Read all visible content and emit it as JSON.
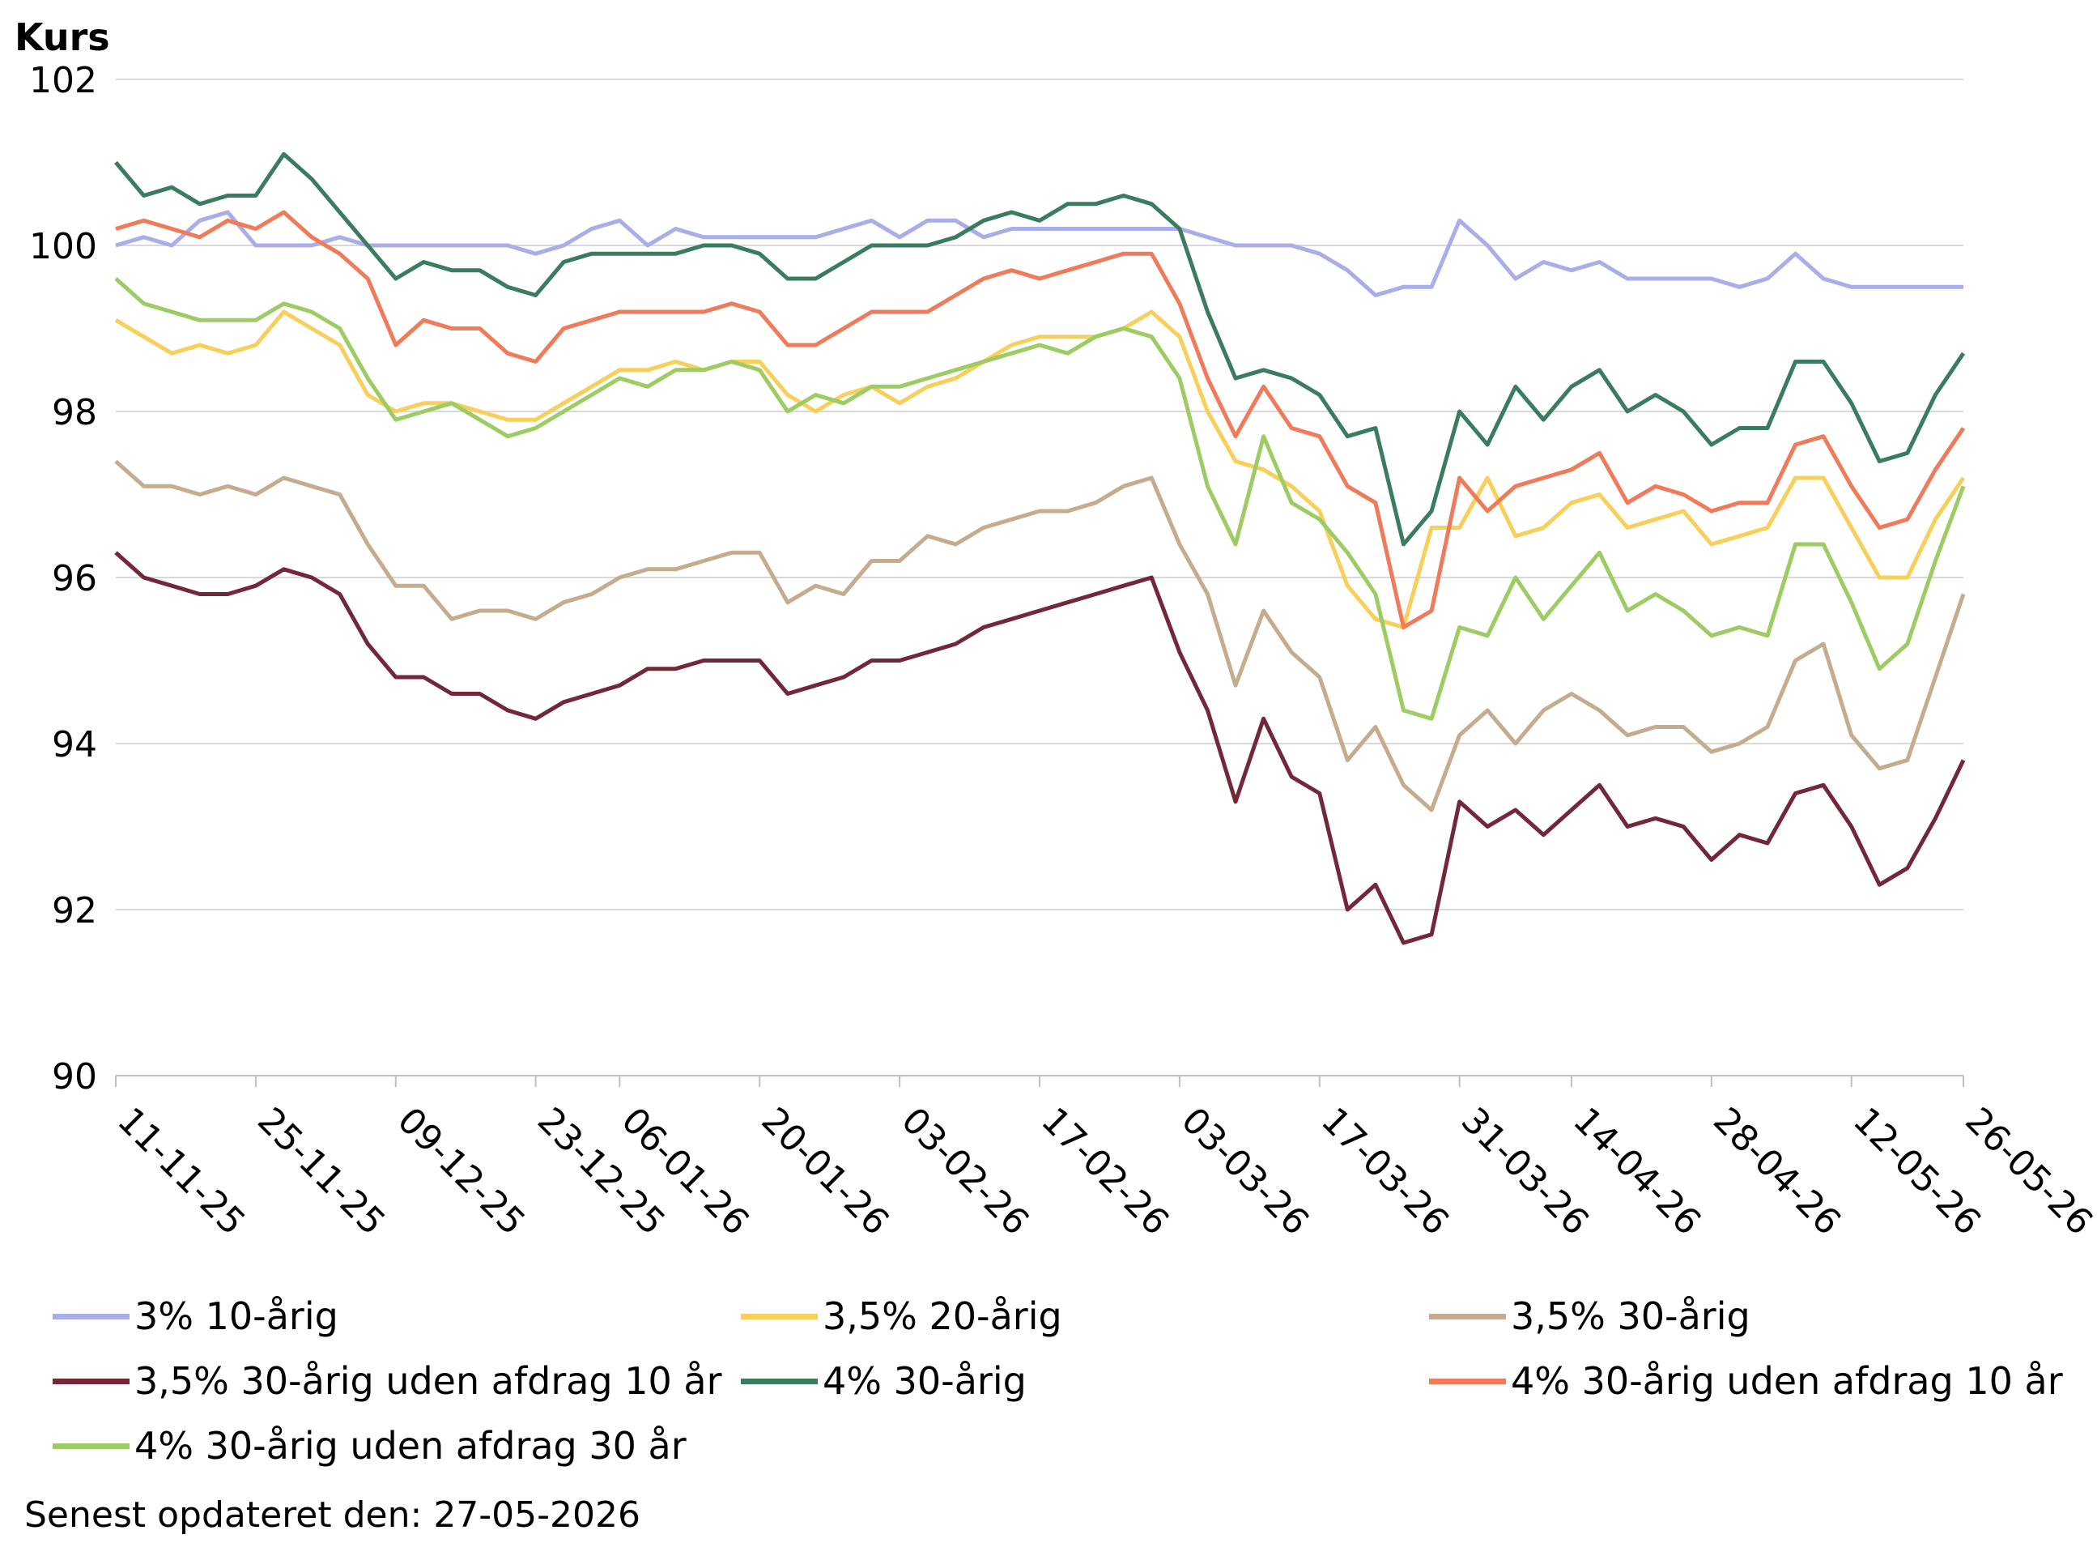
{
  "chart_data": {
    "type": "line",
    "ylabel": "Kurs",
    "ylim": [
      90,
      102
    ],
    "yticks": [
      90,
      92,
      94,
      96,
      98,
      100,
      102
    ],
    "grid": true,
    "legend_position": "bottom",
    "x": [
      "11-11-25",
      "13-11-25",
      "17-11-25",
      "19-11-25",
      "21-11-25",
      "25-11-25",
      "27-11-25",
      "01-12-25",
      "03-12-25",
      "05-12-25",
      "09-12-25",
      "11-12-25",
      "15-12-25",
      "17-12-25",
      "19-12-25",
      "23-12-25",
      "29-12-25",
      "02-01-26",
      "06-01-26",
      "08-01-26",
      "12-01-26",
      "14-01-26",
      "16-01-26",
      "20-01-26",
      "22-01-26",
      "26-01-26",
      "28-01-26",
      "30-01-26",
      "03-02-26",
      "05-02-26",
      "09-02-26",
      "11-02-26",
      "13-02-26",
      "17-02-26",
      "19-02-26",
      "23-02-26",
      "25-02-26",
      "27-02-26",
      "03-03-26",
      "05-03-26",
      "09-03-26",
      "11-03-26",
      "13-03-26",
      "17-03-26",
      "19-03-26",
      "23-03-26",
      "25-03-26",
      "27-03-26",
      "31-03-26",
      "06-04-26",
      "08-04-26",
      "10-04-26",
      "14-04-26",
      "16-04-26",
      "20-04-26",
      "22-04-26",
      "24-04-26",
      "28-04-26",
      "30-04-26",
      "04-05-26",
      "06-05-26",
      "08-05-26",
      "12-05-26",
      "18-05-26",
      "20-05-26",
      "22-05-26",
      "26-05-26"
    ],
    "xticks": [
      "11-11-25",
      "25-11-25",
      "09-12-25",
      "23-12-25",
      "06-01-26",
      "20-01-26",
      "03-02-26",
      "17-02-26",
      "03-03-26",
      "17-03-26",
      "31-03-26",
      "14-04-26",
      "28-04-26",
      "12-05-26",
      "26-05-26"
    ],
    "series": [
      {
        "name": "3% 10-årig",
        "color": "#a9aee8",
        "values": [
          100.0,
          100.1,
          100.0,
          100.3,
          100.4,
          100.0,
          100.0,
          100.0,
          100.1,
          100.0,
          100.0,
          100.0,
          100.0,
          100.0,
          100.0,
          99.9,
          100.0,
          100.2,
          100.3,
          100.0,
          100.2,
          100.1,
          100.1,
          100.1,
          100.1,
          100.1,
          100.2,
          100.3,
          100.1,
          100.3,
          100.3,
          100.1,
          100.2,
          100.2,
          100.2,
          100.2,
          100.2,
          100.2,
          100.2,
          100.1,
          100.0,
          100.0,
          100.0,
          99.9,
          99.7,
          99.4,
          99.5,
          99.5,
          100.3,
          100.0,
          99.6,
          99.8,
          99.7,
          99.8,
          99.6,
          99.6,
          99.6,
          99.6,
          99.5,
          99.6,
          99.9,
          99.6,
          99.5,
          99.5,
          99.5,
          99.5,
          99.5
        ]
      },
      {
        "name": "3,5% 20-årig",
        "color": "#f8cf5a",
        "values": [
          99.1,
          98.9,
          98.7,
          98.8,
          98.7,
          98.8,
          99.2,
          99.0,
          98.8,
          98.2,
          98.0,
          98.1,
          98.1,
          98.0,
          97.9,
          97.9,
          98.1,
          98.3,
          98.5,
          98.5,
          98.6,
          98.5,
          98.6,
          98.6,
          98.2,
          98.0,
          98.2,
          98.3,
          98.1,
          98.3,
          98.4,
          98.6,
          98.8,
          98.9,
          98.9,
          98.9,
          99.0,
          99.2,
          98.9,
          98.0,
          97.4,
          97.3,
          97.1,
          96.8,
          95.9,
          95.5,
          95.4,
          96.6,
          96.6,
          97.2,
          96.5,
          96.6,
          96.9,
          97.0,
          96.6,
          96.7,
          96.8,
          96.4,
          96.5,
          96.6,
          97.2,
          97.2,
          96.6,
          96.0,
          96.0,
          96.7,
          97.2
        ]
      },
      {
        "name": "3,5% 30-årig",
        "color": "#c6ac8e",
        "values": [
          97.4,
          97.1,
          97.1,
          97.0,
          97.1,
          97.0,
          97.2,
          97.1,
          97.0,
          96.4,
          95.9,
          95.9,
          95.5,
          95.6,
          95.6,
          95.5,
          95.7,
          95.8,
          96.0,
          96.1,
          96.1,
          96.2,
          96.3,
          96.3,
          95.7,
          95.9,
          95.8,
          96.2,
          96.2,
          96.5,
          96.4,
          96.6,
          96.7,
          96.8,
          96.8,
          96.9,
          97.1,
          97.2,
          96.4,
          95.8,
          94.7,
          95.6,
          95.1,
          94.8,
          93.8,
          94.2,
          93.5,
          93.2,
          94.1,
          94.4,
          94.0,
          94.4,
          94.6,
          94.4,
          94.1,
          94.2,
          94.2,
          93.9,
          94.0,
          94.2,
          95.0,
          95.2,
          94.1,
          93.7,
          93.8,
          94.8,
          95.8
        ]
      },
      {
        "name": "3,5% 30-årig uden afdrag 10 år",
        "color": "#722838",
        "values": [
          96.3,
          96.0,
          95.9,
          95.8,
          95.8,
          95.9,
          96.1,
          96.0,
          95.8,
          95.2,
          94.8,
          94.8,
          94.6,
          94.6,
          94.4,
          94.3,
          94.5,
          94.6,
          94.7,
          94.9,
          94.9,
          95.0,
          95.0,
          95.0,
          94.6,
          94.7,
          94.8,
          95.0,
          95.0,
          95.1,
          95.2,
          95.4,
          95.5,
          95.6,
          95.7,
          95.8,
          95.9,
          96.0,
          95.1,
          94.4,
          93.3,
          94.3,
          93.6,
          93.4,
          92.0,
          92.3,
          91.6,
          91.7,
          93.3,
          93.0,
          93.2,
          92.9,
          93.2,
          93.5,
          93.0,
          93.1,
          93.0,
          92.6,
          92.9,
          92.8,
          93.4,
          93.5,
          93.0,
          92.3,
          92.5,
          93.1,
          93.8
        ]
      },
      {
        "name": "4% 30-årig",
        "color": "#3a7c5e",
        "values": [
          101.0,
          100.6,
          100.7,
          100.5,
          100.6,
          100.6,
          101.1,
          100.8,
          100.4,
          100.0,
          99.6,
          99.8,
          99.7,
          99.7,
          99.5,
          99.4,
          99.8,
          99.9,
          99.9,
          99.9,
          99.9,
          100.0,
          100.0,
          99.9,
          99.6,
          99.6,
          99.8,
          100.0,
          100.0,
          100.0,
          100.1,
          100.3,
          100.4,
          100.3,
          100.5,
          100.5,
          100.6,
          100.5,
          100.2,
          99.2,
          98.4,
          98.5,
          98.4,
          98.2,
          97.7,
          97.8,
          96.4,
          96.8,
          98.0,
          97.6,
          98.3,
          97.9,
          98.3,
          98.5,
          98.0,
          98.2,
          98.0,
          97.6,
          97.8,
          97.8,
          98.6,
          98.6,
          98.1,
          97.4,
          97.5,
          98.2,
          98.7
        ]
      },
      {
        "name": "4% 30-årig uden afdrag 10 år",
        "color": "#ef7b5b",
        "values": [
          100.2,
          100.3,
          100.2,
          100.1,
          100.3,
          100.2,
          100.4,
          100.1,
          99.9,
          99.6,
          98.8,
          99.1,
          99.0,
          99.0,
          98.7,
          98.6,
          99.0,
          99.1,
          99.2,
          99.2,
          99.2,
          99.2,
          99.3,
          99.2,
          98.8,
          98.8,
          99.0,
          99.2,
          99.2,
          99.2,
          99.4,
          99.6,
          99.7,
          99.6,
          99.7,
          99.8,
          99.9,
          99.9,
          99.3,
          98.4,
          97.7,
          98.3,
          97.8,
          97.7,
          97.1,
          96.9,
          95.4,
          95.6,
          97.2,
          96.8,
          97.1,
          97.2,
          97.3,
          97.5,
          96.9,
          97.1,
          97.0,
          96.8,
          96.9,
          96.9,
          97.6,
          97.7,
          97.1,
          96.6,
          96.7,
          97.3,
          97.8
        ]
      },
      {
        "name": "4% 30-årig uden afdrag 30 år",
        "color": "#9ccc63",
        "values": [
          99.6,
          99.3,
          99.2,
          99.1,
          99.1,
          99.1,
          99.3,
          99.2,
          99.0,
          98.4,
          97.9,
          98.0,
          98.1,
          97.9,
          97.7,
          97.8,
          98.0,
          98.2,
          98.4,
          98.3,
          98.5,
          98.5,
          98.6,
          98.5,
          98.0,
          98.2,
          98.1,
          98.3,
          98.3,
          98.4,
          98.5,
          98.6,
          98.7,
          98.8,
          98.7,
          98.9,
          99.0,
          98.9,
          98.4,
          97.1,
          96.4,
          97.7,
          96.9,
          96.7,
          96.3,
          95.8,
          94.4,
          94.3,
          95.4,
          95.3,
          96.0,
          95.5,
          95.9,
          96.3,
          95.6,
          95.8,
          95.6,
          95.3,
          95.4,
          95.3,
          96.4,
          96.4,
          95.7,
          94.9,
          95.2,
          96.2,
          97.1
        ]
      }
    ]
  },
  "footer": "Senest opdateret den: 27-05-2026"
}
